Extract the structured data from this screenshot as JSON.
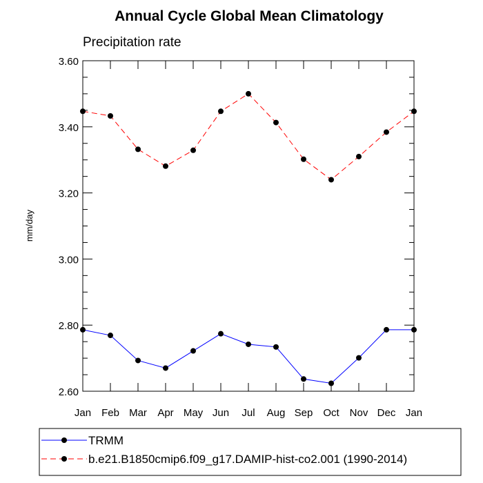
{
  "chart_data": {
    "type": "line",
    "title": "Annual Cycle Global Mean Climatology",
    "subtitle": "Precipitation rate",
    "ylabel": "mm/day",
    "xlabel": "",
    "ylim": [
      2.6,
      3.6
    ],
    "y_ticks": [
      "2.60",
      "2.80",
      "3.00",
      "3.20",
      "3.40",
      "3.60"
    ],
    "categories": [
      "Jan",
      "Feb",
      "Mar",
      "Apr",
      "May",
      "Jun",
      "Jul",
      "Aug",
      "Sep",
      "Oct",
      "Nov",
      "Dec",
      "Jan"
    ],
    "series": [
      {
        "name": "TRMM",
        "color": "#0000ff",
        "dash": "solid",
        "values": [
          2.786,
          2.769,
          2.693,
          2.67,
          2.722,
          2.774,
          2.742,
          2.734,
          2.637,
          2.624,
          2.701,
          2.786,
          2.786
        ]
      },
      {
        "name": "b.e21.B1850cmip6.f09_g17.DAMIP-hist-co2.001 (1990-2014)",
        "color": "#ff0000",
        "dash": "dashed",
        "values": [
          3.447,
          3.433,
          3.332,
          3.281,
          3.329,
          3.447,
          3.5,
          3.413,
          3.302,
          3.24,
          3.31,
          3.384,
          3.447
        ]
      }
    ],
    "grid": false,
    "legend_position": "bottom"
  }
}
